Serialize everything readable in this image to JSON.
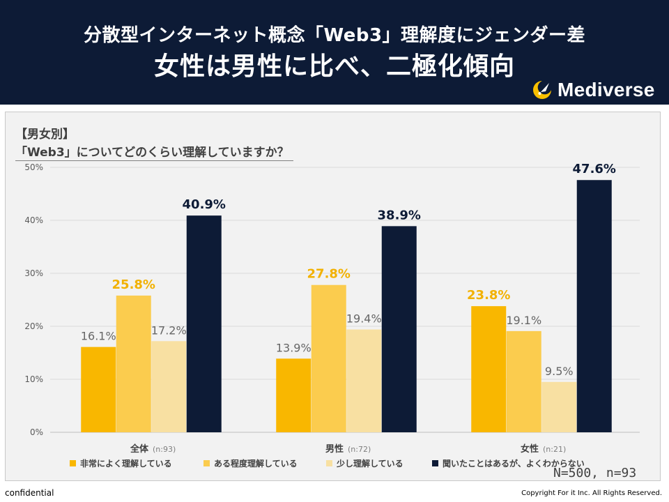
{
  "header": {
    "title_line1": "分散型インターネット概念「Web3」理解度にジェンダー差",
    "title_line2": "女性は男性に比べ、二極化傾向",
    "logo_text": "Mediverse",
    "bg_color": "#0d1b36"
  },
  "question": {
    "category": "【男女別】",
    "text": "「Web3」についてどのくらい理解していますか？"
  },
  "note": "N=500, n=93",
  "footer": {
    "confidential": "confidential",
    "copyright": "Copyright For it Inc. All Rights Reserved."
  },
  "chart_data": {
    "type": "bar",
    "categories": [
      "全体",
      "男性",
      "女性"
    ],
    "category_n": [
      "(n:93)",
      "(n:72)",
      "(n:21)"
    ],
    "ylim": [
      0,
      50
    ],
    "yticks": [
      "0%",
      "10%",
      "20%",
      "30%",
      "40%",
      "50%"
    ],
    "grid": true,
    "legend_position": "bottom",
    "series": [
      {
        "name": "非常によく理解している",
        "color": "#f9b700",
        "values": [
          16.1,
          13.9,
          23.8
        ],
        "labels": [
          "16.1%",
          "13.9%",
          "23.8%"
        ]
      },
      {
        "name": "ある程度理解している",
        "color": "#fbcc4e",
        "values": [
          25.8,
          27.8,
          19.1
        ],
        "labels": [
          "25.8%",
          "27.8%",
          "19.1%"
        ]
      },
      {
        "name": "少し理解している",
        "color": "#f8e0a2",
        "values": [
          17.2,
          19.4,
          9.5
        ],
        "labels": [
          "17.2%",
          "19.4%",
          "9.5%"
        ]
      },
      {
        "name": "聞いたことはあるが、よくわからない",
        "color": "#0d1b36",
        "values": [
          40.9,
          38.9,
          47.6
        ],
        "labels": [
          "40.9%",
          "38.9%",
          "47.6%"
        ]
      }
    ],
    "highlight_color": "#f2b100",
    "label_color": "#666666"
  }
}
